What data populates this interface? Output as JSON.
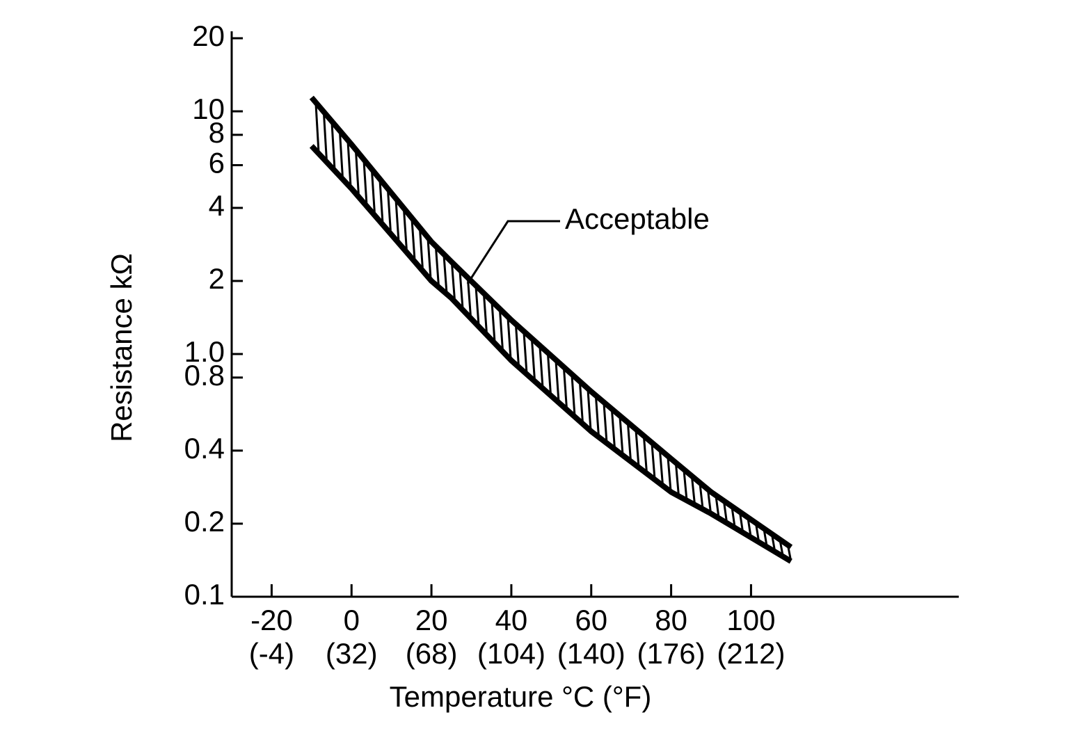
{
  "chart_data": {
    "type": "line",
    "y_label": "Resistance kΩ",
    "x_label": "Temperature °C (°F)",
    "log_y": true,
    "xlim": [
      -30,
      152
    ],
    "ylim": [
      0.1,
      20
    ],
    "xticks": [
      -20,
      0,
      20,
      40,
      60,
      80,
      100
    ],
    "xtick_secondary_labels": [
      "(-4)",
      "(32)",
      "(68)",
      "(104)",
      "(140)",
      "(176)",
      "(212)"
    ],
    "yticks": [
      0.1,
      0.2,
      0.4,
      0.8,
      {
        "value": 1,
        "label": "1.0"
      },
      2,
      4,
      6,
      8,
      10,
      20
    ],
    "x": [
      -10,
      0,
      10,
      20,
      25,
      40,
      60,
      80,
      90,
      110
    ],
    "series": [
      {
        "color": "#000000",
        "values": [
          11.4,
          7.3,
          4.6,
          2.9,
          2.4,
          1.38,
          0.7,
          0.37,
          0.27,
          0.16
        ]
      },
      {
        "color": "#000000",
        "values": [
          7.2,
          4.8,
          3.1,
          2.0,
          1.7,
          0.94,
          0.48,
          0.27,
          0.22,
          0.14
        ]
      }
    ],
    "hatched_band": true,
    "annotations": [
      {
        "text": "Acceptable"
      }
    ]
  }
}
